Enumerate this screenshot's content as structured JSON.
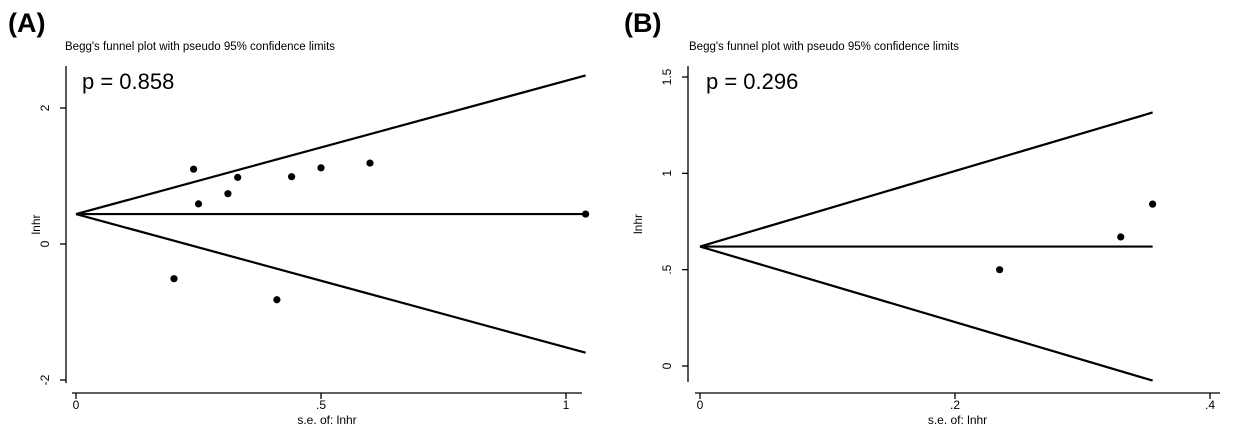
{
  "chart_data": [
    {
      "panel_label": "(A)",
      "type": "scatter",
      "title": "Begg's funnel plot with pseudo 95% confidence limits",
      "annotation": "p = 0.858",
      "xlabel": "s.e. of: lnhr",
      "ylabel": "lnhr",
      "xlim": [
        0,
        1.04
      ],
      "ylim": [
        -2,
        2.4
      ],
      "xticks": [
        0,
        0.5,
        1
      ],
      "xtick_labels": [
        "0",
        ".5",
        "1"
      ],
      "yticks": [
        -2,
        0,
        2
      ],
      "ytick_labels": [
        "-2",
        "0",
        "2"
      ],
      "pooled_estimate": 0.44,
      "funnel_x_max": 1.04,
      "points": [
        {
          "x": 0.24,
          "y": 1.1
        },
        {
          "x": 0.25,
          "y": 0.59
        },
        {
          "x": 0.31,
          "y": 0.74
        },
        {
          "x": 0.33,
          "y": 0.98
        },
        {
          "x": 0.44,
          "y": 0.99
        },
        {
          "x": 0.5,
          "y": 1.12
        },
        {
          "x": 0.6,
          "y": 1.19
        },
        {
          "x": 1.04,
          "y": 0.44
        },
        {
          "x": 0.2,
          "y": -0.51
        },
        {
          "x": 0.41,
          "y": -0.82
        }
      ]
    },
    {
      "panel_label": "(B)",
      "type": "scatter",
      "title": "Begg's funnel plot with pseudo 95% confidence limits",
      "annotation": "p = 0.296",
      "xlabel": "s.e. of: lnhr",
      "ylabel": "lnhr",
      "xlim": [
        0,
        0.4
      ],
      "ylim": [
        -0.1,
        1.5
      ],
      "xticks": [
        0,
        0.2,
        0.4
      ],
      "xtick_labels": [
        "0",
        ".2",
        ".4"
      ],
      "yticks": [
        0,
        0.5,
        1,
        1.5
      ],
      "ytick_labels": [
        "0",
        ".5",
        "1",
        "1.5"
      ],
      "pooled_estimate": 0.62,
      "funnel_x_max": 0.355,
      "points": [
        {
          "x": 0.235,
          "y": 0.5
        },
        {
          "x": 0.33,
          "y": 0.67
        },
        {
          "x": 0.355,
          "y": 0.84
        }
      ]
    }
  ]
}
